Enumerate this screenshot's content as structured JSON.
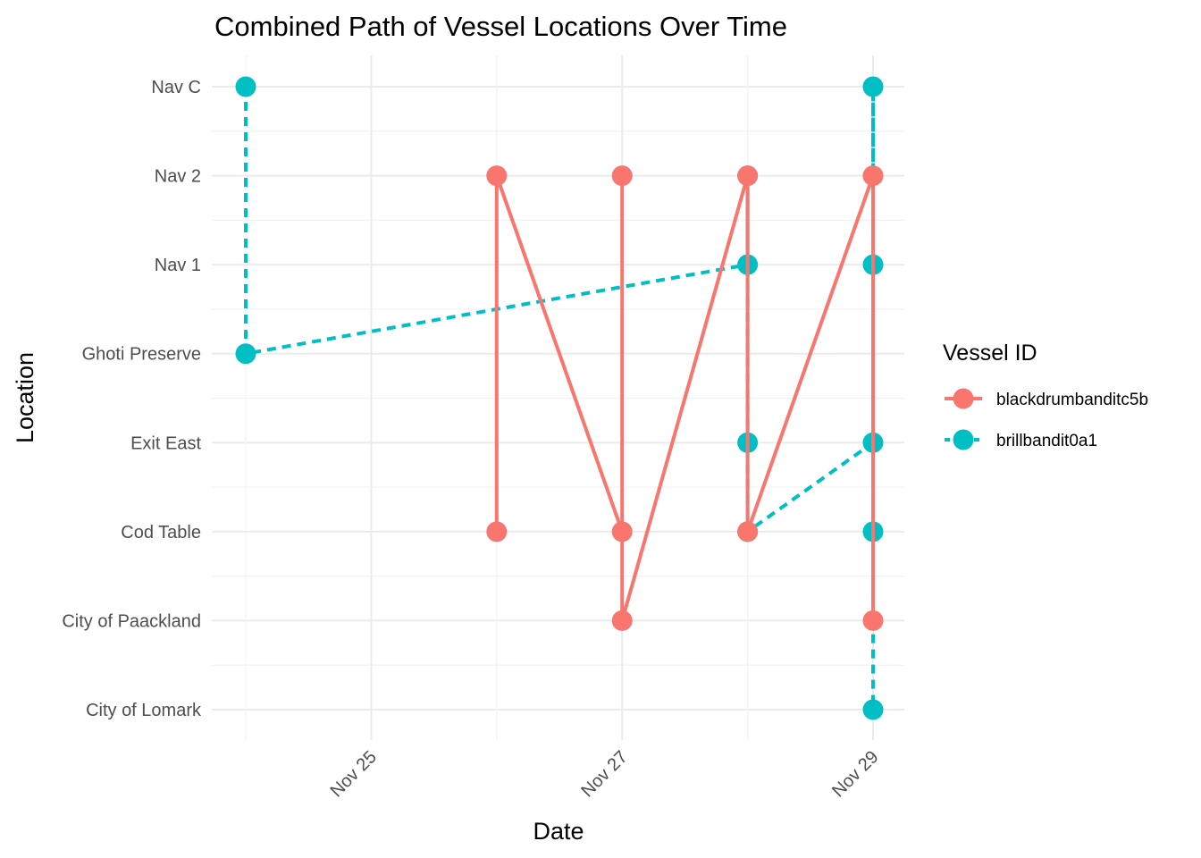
{
  "chart_data": {
    "type": "line",
    "title": "Combined Path of Vessel Locations Over Time",
    "xlabel": "Date",
    "ylabel": "Location",
    "y_categories": [
      "City of Lomark",
      "City of Paackland",
      "Cod Table",
      "Exit East",
      "Ghoti Preserve",
      "Nav 1",
      "Nav 2",
      "Nav C"
    ],
    "x_ticks": [
      {
        "label": "Nov 25",
        "value": "2035-11-25"
      },
      {
        "label": "Nov 27",
        "value": "2035-11-27"
      },
      {
        "label": "Nov 29",
        "value": "2035-11-29"
      }
    ],
    "xlim": [
      "2035-11-23.95",
      "2035-11-29.5"
    ],
    "grid": true,
    "legend": {
      "title": "Vessel ID",
      "position": "right"
    },
    "series": [
      {
        "name": "blackdrumbanditc5b",
        "color": "#F8766D",
        "line_style": "solid",
        "points": [
          {
            "x": "2035-11-26",
            "y": "Cod Table"
          },
          {
            "x": "2035-11-26",
            "y": "Nav 2"
          },
          {
            "x": "2035-11-27",
            "y": "Cod Table"
          },
          {
            "x": "2035-11-27",
            "y": "Nav 2"
          },
          {
            "x": "2035-11-27",
            "y": "City of Paackland"
          },
          {
            "x": "2035-11-28",
            "y": "Nav 2"
          },
          {
            "x": "2035-11-28",
            "y": "Cod Table"
          },
          {
            "x": "2035-11-29",
            "y": "Nav 2"
          },
          {
            "x": "2035-11-29",
            "y": "City of Paackland"
          }
        ]
      },
      {
        "name": "brillbandit0a1",
        "color": "#00BFC4",
        "line_style": "dashed",
        "points": [
          {
            "x": "2035-11-24",
            "y": "Nav C"
          },
          {
            "x": "2035-11-24",
            "y": "Ghoti Preserve"
          },
          {
            "x": "2035-11-28",
            "y": "Nav 1"
          },
          {
            "x": "2035-11-28",
            "y": "Nav 2"
          },
          {
            "x": "2035-11-28",
            "y": "Exit East"
          },
          {
            "x": "2035-11-28",
            "y": "Cod Table"
          },
          {
            "x": "2035-11-29",
            "y": "Exit East"
          },
          {
            "x": "2035-11-29",
            "y": "Nav C"
          },
          {
            "x": "2035-11-29",
            "y": "Nav 1"
          },
          {
            "x": "2035-11-29",
            "y": "Cod Table"
          },
          {
            "x": "2035-11-29",
            "y": "City of Lomark"
          }
        ]
      }
    ]
  }
}
